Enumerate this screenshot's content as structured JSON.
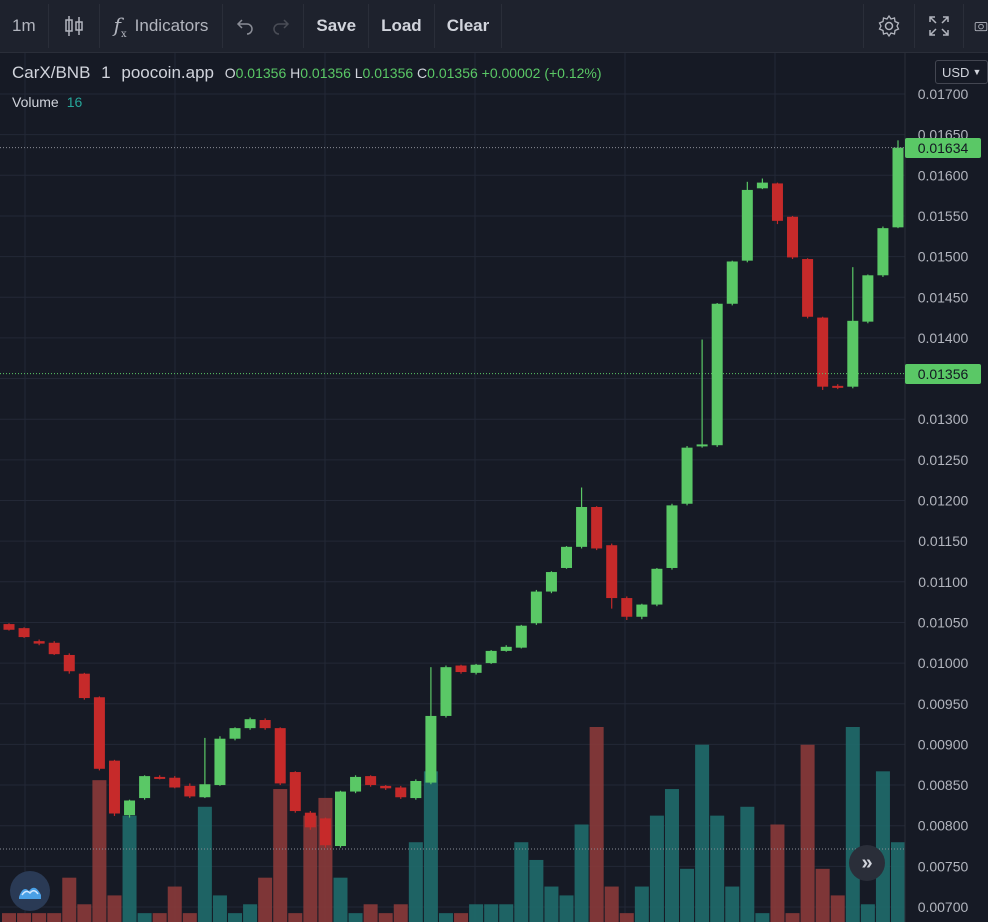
{
  "toolbar": {
    "interval": "1m",
    "indicators_label": "Indicators",
    "save_label": "Save",
    "load_label": "Load",
    "clear_label": "Clear"
  },
  "legend": {
    "symbol": "CarX/BNB",
    "interval": "1",
    "source": "poocoin.app",
    "o_label": "O",
    "o_value": "0.01356",
    "h_label": "H",
    "h_value": "0.01356",
    "l_label": "L",
    "l_value": "0.01356",
    "c_label": "C",
    "c_value": "0.01356",
    "change": "+0.00002 (+0.12%)",
    "volume_label": "Volume",
    "volume_value": "16"
  },
  "currency": "USD",
  "price_tags": {
    "last": "0.01634",
    "crosshair": "0.01356"
  },
  "colors": {
    "background": "#161a25",
    "up": "#5ac866",
    "down": "#c62a2a",
    "vol_up": "#1f6b6b",
    "vol_down": "#8a3a3a",
    "grid": "#232836",
    "axis_text": "#b2b5be"
  },
  "chart_data": {
    "type": "candlestick",
    "y_axis": {
      "min": 0.00695,
      "max": 0.01705,
      "ticks": [
        "0.01700",
        "0.01650",
        "0.01600",
        "0.01550",
        "0.01500",
        "0.01450",
        "0.01400",
        "0.01350",
        "0.01300",
        "0.01250",
        "0.01200",
        "0.01150",
        "0.01100",
        "0.01050",
        "0.01000",
        "0.00950",
        "0.00900",
        "0.00850",
        "0.00800",
        "0.00750",
        "0.00700"
      ]
    },
    "candles": [
      {
        "o": 0.01048,
        "h": 0.01049,
        "l": 0.0104,
        "c": 0.01041,
        "v": 1
      },
      {
        "o": 0.01043,
        "h": 0.01044,
        "l": 0.01031,
        "c": 0.01032,
        "v": 1
      },
      {
        "o": 0.01027,
        "h": 0.01029,
        "l": 0.01022,
        "c": 0.01024,
        "v": 1
      },
      {
        "o": 0.01025,
        "h": 0.01027,
        "l": 0.0101,
        "c": 0.01011,
        "v": 1
      },
      {
        "o": 0.0101,
        "h": 0.01012,
        "l": 0.00987,
        "c": 0.0099,
        "v": 5
      },
      {
        "o": 0.00987,
        "h": 0.00988,
        "l": 0.00955,
        "c": 0.00957,
        "v": 2
      },
      {
        "o": 0.00958,
        "h": 0.00959,
        "l": 0.00868,
        "c": 0.0087,
        "v": 16
      },
      {
        "o": 0.0088,
        "h": 0.00881,
        "l": 0.00812,
        "c": 0.00815,
        "v": 3
      },
      {
        "o": 0.00813,
        "h": 0.00832,
        "l": 0.0081,
        "c": 0.00831,
        "v": 12
      },
      {
        "o": 0.00834,
        "h": 0.00862,
        "l": 0.00832,
        "c": 0.00861,
        "v": 1
      },
      {
        "o": 0.0086,
        "h": 0.00862,
        "l": 0.00857,
        "c": 0.00858,
        "v": 1
      },
      {
        "o": 0.00859,
        "h": 0.00861,
        "l": 0.00846,
        "c": 0.00847,
        "v": 4
      },
      {
        "o": 0.00849,
        "h": 0.00852,
        "l": 0.00834,
        "c": 0.00836,
        "v": 1
      },
      {
        "o": 0.00835,
        "h": 0.00908,
        "l": 0.00834,
        "c": 0.00851,
        "v": 13
      },
      {
        "o": 0.0085,
        "h": 0.0091,
        "l": 0.00849,
        "c": 0.00907,
        "v": 3
      },
      {
        "o": 0.00907,
        "h": 0.00921,
        "l": 0.00905,
        "c": 0.0092,
        "v": 1
      },
      {
        "o": 0.0092,
        "h": 0.00933,
        "l": 0.00918,
        "c": 0.00931,
        "v": 2
      },
      {
        "o": 0.0093,
        "h": 0.00932,
        "l": 0.00918,
        "c": 0.0092,
        "v": 5
      },
      {
        "o": 0.0092,
        "h": 0.00921,
        "l": 0.0085,
        "c": 0.00852,
        "v": 15
      },
      {
        "o": 0.00866,
        "h": 0.00867,
        "l": 0.00816,
        "c": 0.00818,
        "v": 1
      },
      {
        "o": 0.00816,
        "h": 0.00818,
        "l": 0.00795,
        "c": 0.00798,
        "v": 12
      },
      {
        "o": 0.00809,
        "h": 0.0081,
        "l": 0.00773,
        "c": 0.00776,
        "v": 14
      },
      {
        "o": 0.00775,
        "h": 0.00843,
        "l": 0.00773,
        "c": 0.00842,
        "v": 5
      },
      {
        "o": 0.00842,
        "h": 0.00862,
        "l": 0.0084,
        "c": 0.0086,
        "v": 1
      },
      {
        "o": 0.00861,
        "h": 0.00862,
        "l": 0.00848,
        "c": 0.0085,
        "v": 2
      },
      {
        "o": 0.00849,
        "h": 0.0085,
        "l": 0.00844,
        "c": 0.00846,
        "v": 1
      },
      {
        "o": 0.00847,
        "h": 0.00849,
        "l": 0.00833,
        "c": 0.00835,
        "v": 2
      },
      {
        "o": 0.00834,
        "h": 0.00857,
        "l": 0.00832,
        "c": 0.00855,
        "v": 9
      },
      {
        "o": 0.00853,
        "h": 0.00995,
        "l": 0.00851,
        "c": 0.00935,
        "v": 17
      },
      {
        "o": 0.00935,
        "h": 0.00997,
        "l": 0.00933,
        "c": 0.00995,
        "v": 1
      },
      {
        "o": 0.00997,
        "h": 0.00998,
        "l": 0.00987,
        "c": 0.00989,
        "v": 1
      },
      {
        "o": 0.00988,
        "h": 0.00999,
        "l": 0.00986,
        "c": 0.00998,
        "v": 2
      },
      {
        "o": 0.01,
        "h": 0.01016,
        "l": 0.00999,
        "c": 0.01015,
        "v": 2
      },
      {
        "o": 0.01015,
        "h": 0.01022,
        "l": 0.01014,
        "c": 0.0102,
        "v": 2
      },
      {
        "o": 0.01019,
        "h": 0.01047,
        "l": 0.01018,
        "c": 0.01046,
        "v": 9
      },
      {
        "o": 0.01049,
        "h": 0.0109,
        "l": 0.01047,
        "c": 0.01088,
        "v": 7
      },
      {
        "o": 0.01088,
        "h": 0.01113,
        "l": 0.01086,
        "c": 0.01112,
        "v": 4
      },
      {
        "o": 0.01117,
        "h": 0.01144,
        "l": 0.01116,
        "c": 0.01143,
        "v": 3
      },
      {
        "o": 0.01143,
        "h": 0.01216,
        "l": 0.01141,
        "c": 0.01192,
        "v": 11
      },
      {
        "o": 0.01192,
        "h": 0.01193,
        "l": 0.01139,
        "c": 0.01141,
        "v": 22
      },
      {
        "o": 0.01145,
        "h": 0.01147,
        "l": 0.01067,
        "c": 0.0108,
        "v": 4
      },
      {
        "o": 0.0108,
        "h": 0.01082,
        "l": 0.01053,
        "c": 0.01057,
        "v": 1
      },
      {
        "o": 0.01057,
        "h": 0.01073,
        "l": 0.01054,
        "c": 0.01072,
        "v": 4
      },
      {
        "o": 0.01072,
        "h": 0.01117,
        "l": 0.0107,
        "c": 0.01116,
        "v": 12
      },
      {
        "o": 0.01117,
        "h": 0.01196,
        "l": 0.01115,
        "c": 0.01194,
        "v": 15
      },
      {
        "o": 0.01196,
        "h": 0.01267,
        "l": 0.01194,
        "c": 0.01265,
        "v": 6
      },
      {
        "o": 0.01267,
        "h": 0.01398,
        "l": 0.01265,
        "c": 0.01269,
        "v": 20
      },
      {
        "o": 0.01268,
        "h": 0.01443,
        "l": 0.01266,
        "c": 0.01442,
        "v": 12
      },
      {
        "o": 0.01442,
        "h": 0.01495,
        "l": 0.0144,
        "c": 0.01494,
        "v": 4
      },
      {
        "o": 0.01495,
        "h": 0.01592,
        "l": 0.01493,
        "c": 0.01582,
        "v": 13
      },
      {
        "o": 0.01584,
        "h": 0.01596,
        "l": 0.01583,
        "c": 0.01591,
        "v": 1
      },
      {
        "o": 0.0159,
        "h": 0.01591,
        "l": 0.0154,
        "c": 0.01544,
        "v": 11
      },
      {
        "o": 0.01549,
        "h": 0.0155,
        "l": 0.01497,
        "c": 0.01499,
        "v": 1
      },
      {
        "o": 0.01497,
        "h": 0.01498,
        "l": 0.01424,
        "c": 0.01426,
        "v": 20
      },
      {
        "o": 0.01425,
        "h": 0.01426,
        "l": 0.01336,
        "c": 0.0134,
        "v": 6
      },
      {
        "o": 0.01341,
        "h": 0.01343,
        "l": 0.01337,
        "c": 0.0134,
        "v": 3
      },
      {
        "o": 0.0134,
        "h": 0.01487,
        "l": 0.01338,
        "c": 0.01421,
        "v": 22
      },
      {
        "o": 0.0142,
        "h": 0.01478,
        "l": 0.01418,
        "c": 0.01477,
        "v": 2
      },
      {
        "o": 0.01477,
        "h": 0.01537,
        "l": 0.01475,
        "c": 0.01535,
        "v": 17
      },
      {
        "o": 0.01536,
        "h": 0.01643,
        "l": 0.01535,
        "c": 0.01634,
        "v": 9
      }
    ]
  }
}
